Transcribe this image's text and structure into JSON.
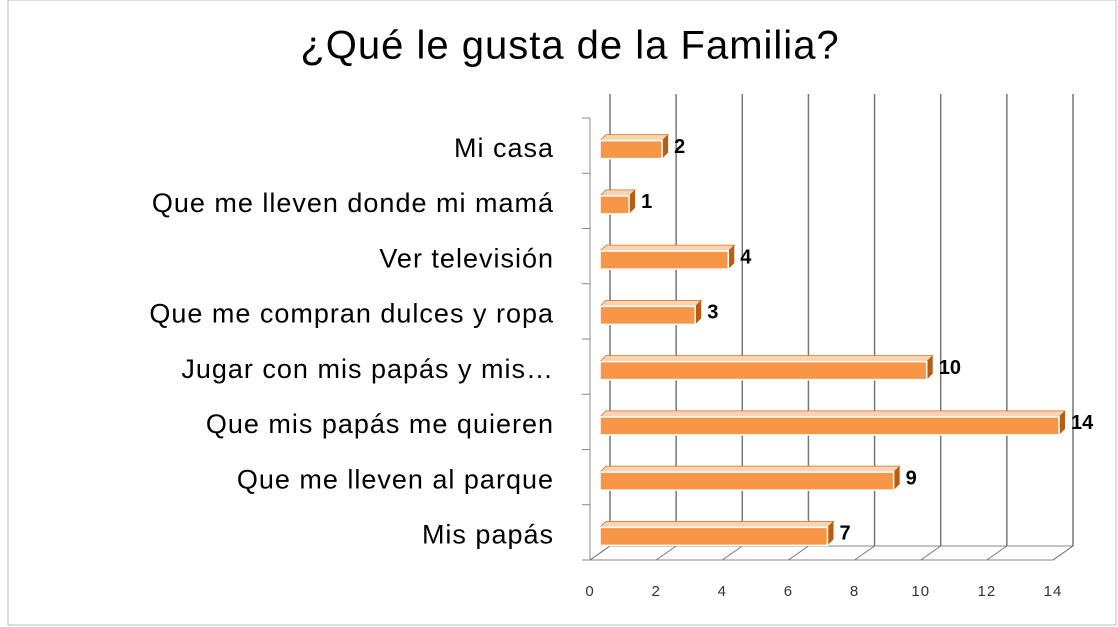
{
  "chart_data": {
    "type": "bar",
    "title": "¿Qué le gusta de la Familia?",
    "categories": [
      "Mi casa",
      "Que me lleven donde mi mamá",
      "Ver televisión",
      "Que me compran dulces y ropa",
      "Jugar con mis papás y mis…",
      "Que mis papás me quieren",
      "Que me lleven al parque",
      "Mis papás"
    ],
    "values": [
      2,
      1,
      4,
      3,
      10,
      14,
      9,
      7
    ],
    "color": "#f79646",
    "xlim": [
      0,
      14
    ],
    "xticks": [
      0,
      2,
      4,
      6,
      8,
      10,
      12,
      14
    ],
    "grid": true
  }
}
